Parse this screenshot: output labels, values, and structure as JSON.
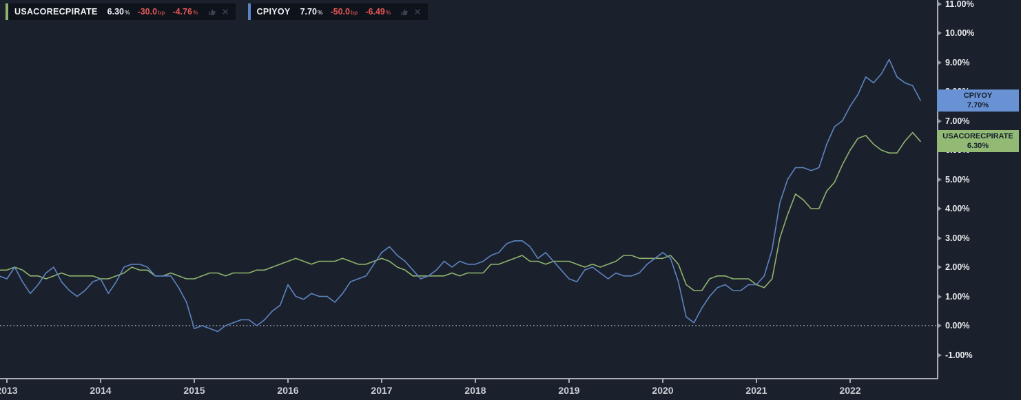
{
  "colors": {
    "background": "#1b212c",
    "cpiyoy_line": "#5d84c2",
    "usacorecpirate_line": "#8fb46f",
    "negative_value": "#e25757",
    "axis_line": "#a9aeb8",
    "cpiyoy_badge": "#6992d4",
    "usacorecpirate_badge": "#92ba74"
  },
  "legend": {
    "items": [
      {
        "name": "USACORECPIRATE",
        "value": "6.30",
        "value_suffix": "%",
        "change_bp": "-30.0",
        "change_bp_suffix": "bp",
        "change_pct": "-4.76",
        "change_pct_suffix": "%"
      },
      {
        "name": "CPIYOY",
        "value": "7.70",
        "value_suffix": "%",
        "change_bp": "-50.0",
        "change_bp_suffix": "bp",
        "change_pct": "-6.49",
        "change_pct_suffix": "%"
      }
    ]
  },
  "price_labels": [
    {
      "text": "CPIYOY",
      "value": "7.70%",
      "value_num": 7.7
    },
    {
      "text": "USACORECPIRATE",
      "value": "6.30%",
      "value_num": 6.3
    }
  ],
  "chart_data": {
    "type": "line",
    "frequency": "monthly",
    "legend_position": "top-left",
    "grid": false,
    "ylim": [
      -1.8,
      11.15
    ],
    "xlim": [
      "2012-12",
      "2022-11"
    ],
    "zero_line": {
      "value": 0,
      "style": "dotted"
    },
    "y_ticks": [
      {
        "value": 11,
        "label": "11.00%"
      },
      {
        "value": 10,
        "label": "10.00%"
      },
      {
        "value": 9,
        "label": "9.00%"
      },
      {
        "value": 8,
        "label": "8.00%"
      },
      {
        "value": 7,
        "label": "7.00%"
      },
      {
        "value": 6,
        "label": "6.00%"
      },
      {
        "value": 5,
        "label": "5.00%"
      },
      {
        "value": 4,
        "label": "4.00%"
      },
      {
        "value": 3,
        "label": "3.00%"
      },
      {
        "value": 2,
        "label": "2.00%"
      },
      {
        "value": 1,
        "label": "1.00%"
      },
      {
        "value": 0,
        "label": "0.00%"
      },
      {
        "value": -1,
        "label": "-1.00%"
      }
    ],
    "x_ticks": [
      {
        "value": 2013,
        "label": "2013"
      },
      {
        "value": 2014,
        "label": "2014"
      },
      {
        "value": 2015,
        "label": "2015"
      },
      {
        "value": 2016,
        "label": "2016"
      },
      {
        "value": 2017,
        "label": "2017"
      },
      {
        "value": 2018,
        "label": "2018"
      },
      {
        "value": 2019,
        "label": "2019"
      },
      {
        "value": 2020,
        "label": "2020"
      },
      {
        "value": 2021,
        "label": "2021"
      },
      {
        "value": 2022,
        "label": "2022"
      }
    ],
    "x": [
      "2012-12",
      "2013-01",
      "2013-02",
      "2013-03",
      "2013-04",
      "2013-05",
      "2013-06",
      "2013-07",
      "2013-08",
      "2013-09",
      "2013-10",
      "2013-11",
      "2013-12",
      "2014-01",
      "2014-02",
      "2014-03",
      "2014-04",
      "2014-05",
      "2014-06",
      "2014-07",
      "2014-08",
      "2014-09",
      "2014-10",
      "2014-11",
      "2014-12",
      "2015-01",
      "2015-02",
      "2015-03",
      "2015-04",
      "2015-05",
      "2015-06",
      "2015-07",
      "2015-08",
      "2015-09",
      "2015-10",
      "2015-11",
      "2015-12",
      "2016-01",
      "2016-02",
      "2016-03",
      "2016-04",
      "2016-05",
      "2016-06",
      "2016-07",
      "2016-08",
      "2016-09",
      "2016-10",
      "2016-11",
      "2016-12",
      "2017-01",
      "2017-02",
      "2017-03",
      "2017-04",
      "2017-05",
      "2017-06",
      "2017-07",
      "2017-08",
      "2017-09",
      "2017-10",
      "2017-11",
      "2017-12",
      "2018-01",
      "2018-02",
      "2018-03",
      "2018-04",
      "2018-05",
      "2018-06",
      "2018-07",
      "2018-08",
      "2018-09",
      "2018-10",
      "2018-11",
      "2018-12",
      "2019-01",
      "2019-02",
      "2019-03",
      "2019-04",
      "2019-05",
      "2019-06",
      "2019-07",
      "2019-08",
      "2019-09",
      "2019-10",
      "2019-11",
      "2019-12",
      "2020-01",
      "2020-02",
      "2020-03",
      "2020-04",
      "2020-05",
      "2020-06",
      "2020-07",
      "2020-08",
      "2020-09",
      "2020-10",
      "2020-11",
      "2020-12",
      "2021-01",
      "2021-02",
      "2021-03",
      "2021-04",
      "2021-05",
      "2021-06",
      "2021-07",
      "2021-08",
      "2021-09",
      "2021-10",
      "2021-11",
      "2021-12",
      "2022-01",
      "2022-02",
      "2022-03",
      "2022-04",
      "2022-05",
      "2022-06",
      "2022-07",
      "2022-08",
      "2022-09",
      "2022-10"
    ],
    "series": [
      {
        "name": "USACORECPIRATE",
        "color": "#8fb46f",
        "values": [
          1.9,
          1.9,
          2.0,
          1.9,
          1.7,
          1.7,
          1.6,
          1.7,
          1.8,
          1.7,
          1.7,
          1.7,
          1.7,
          1.6,
          1.6,
          1.7,
          1.8,
          2.0,
          1.9,
          1.9,
          1.7,
          1.7,
          1.8,
          1.7,
          1.6,
          1.6,
          1.7,
          1.8,
          1.8,
          1.7,
          1.8,
          1.8,
          1.8,
          1.9,
          1.9,
          2.0,
          2.1,
          2.2,
          2.3,
          2.2,
          2.1,
          2.2,
          2.2,
          2.2,
          2.3,
          2.2,
          2.1,
          2.1,
          2.2,
          2.3,
          2.2,
          2.0,
          1.9,
          1.7,
          1.7,
          1.7,
          1.7,
          1.7,
          1.8,
          1.7,
          1.8,
          1.8,
          1.8,
          2.1,
          2.1,
          2.2,
          2.3,
          2.4,
          2.2,
          2.2,
          2.1,
          2.2,
          2.2,
          2.2,
          2.1,
          2.0,
          2.1,
          2.0,
          2.1,
          2.2,
          2.4,
          2.4,
          2.3,
          2.3,
          2.3,
          2.3,
          2.4,
          2.1,
          1.4,
          1.2,
          1.2,
          1.6,
          1.7,
          1.7,
          1.6,
          1.6,
          1.6,
          1.4,
          1.3,
          1.6,
          3.0,
          3.8,
          4.5,
          4.3,
          4.0,
          4.0,
          4.6,
          4.9,
          5.5,
          6.0,
          6.4,
          6.5,
          6.2,
          6.0,
          5.9,
          5.9,
          6.3,
          6.6,
          6.3
        ]
      },
      {
        "name": "CPIYOY",
        "color": "#5d84c2",
        "values": [
          1.7,
          1.6,
          2.0,
          1.5,
          1.1,
          1.4,
          1.8,
          2.0,
          1.5,
          1.2,
          1.0,
          1.2,
          1.5,
          1.6,
          1.1,
          1.5,
          2.0,
          2.1,
          2.1,
          2.0,
          1.7,
          1.7,
          1.7,
          1.3,
          0.8,
          -0.1,
          0.0,
          -0.1,
          -0.2,
          0.0,
          0.1,
          0.2,
          0.2,
          0.0,
          0.2,
          0.5,
          0.7,
          1.4,
          1.0,
          0.9,
          1.1,
          1.0,
          1.0,
          0.8,
          1.1,
          1.5,
          1.6,
          1.7,
          2.1,
          2.5,
          2.7,
          2.4,
          2.2,
          1.9,
          1.6,
          1.7,
          1.9,
          2.2,
          2.0,
          2.2,
          2.1,
          2.1,
          2.2,
          2.4,
          2.5,
          2.8,
          2.9,
          2.9,
          2.7,
          2.3,
          2.5,
          2.2,
          1.9,
          1.6,
          1.5,
          1.9,
          2.0,
          1.8,
          1.6,
          1.8,
          1.7,
          1.7,
          1.8,
          2.1,
          2.3,
          2.5,
          2.3,
          1.5,
          0.3,
          0.1,
          0.6,
          1.0,
          1.3,
          1.4,
          1.2,
          1.2,
          1.4,
          1.4,
          1.7,
          2.6,
          4.2,
          5.0,
          5.4,
          5.4,
          5.3,
          5.4,
          6.2,
          6.8,
          7.0,
          7.5,
          7.9,
          8.5,
          8.3,
          8.6,
          9.1,
          8.5,
          8.3,
          8.2,
          7.7
        ]
      }
    ]
  }
}
